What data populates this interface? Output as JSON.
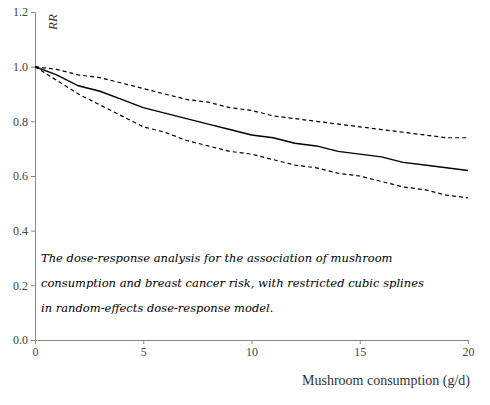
{
  "chart_data": {
    "type": "line",
    "x_label": "Mushroom consumption (g/d)",
    "y_label": "RR",
    "annotations": [
      "The dose-response analysis for the association of mushroom",
      "consumption and breast cancer risk, with restricted cubic splines",
      "in random-effects dose-response model."
    ],
    "x": [
      0,
      1,
      2,
      3,
      4,
      5,
      6,
      7,
      8,
      9,
      10,
      11,
      12,
      13,
      14,
      15,
      16,
      17,
      18,
      19,
      20
    ],
    "series": [
      {
        "color": "#000000",
        "line_style": "solid",
        "values": [
          1.0,
          0.97,
          0.93,
          0.91,
          0.88,
          0.85,
          0.83,
          0.81,
          0.79,
          0.77,
          0.75,
          0.74,
          0.72,
          0.71,
          0.69,
          0.68,
          0.67,
          0.65,
          0.64,
          0.63,
          0.62
        ]
      },
      {
        "color": "#000000",
        "line_style": "dashed",
        "values": [
          1.0,
          0.99,
          0.97,
          0.96,
          0.94,
          0.92,
          0.9,
          0.88,
          0.87,
          0.85,
          0.84,
          0.82,
          0.81,
          0.8,
          0.79,
          0.78,
          0.77,
          0.76,
          0.75,
          0.74,
          0.74
        ]
      },
      {
        "color": "#000000",
        "line_style": "dashed",
        "values": [
          1.0,
          0.95,
          0.9,
          0.86,
          0.82,
          0.78,
          0.76,
          0.73,
          0.71,
          0.69,
          0.68,
          0.66,
          0.64,
          0.63,
          0.61,
          0.6,
          0.58,
          0.56,
          0.55,
          0.53,
          0.52
        ]
      }
    ],
    "xlim": [
      0,
      20
    ],
    "xticks": [
      0,
      5,
      10,
      15,
      20
    ],
    "ylim": [
      0,
      1.2
    ],
    "yticks": [
      {
        "value": 0,
        "label": "0.0"
      },
      {
        "value": 0.2,
        "label": "0.2"
      },
      {
        "value": 0.4,
        "label": "0.4"
      },
      {
        "value": 0.6,
        "label": "0.6"
      },
      {
        "value": 0.8,
        "label": "0.8"
      },
      {
        "value": 1.0,
        "label": "1.0"
      },
      {
        "value": 1.2,
        "label": "1.2"
      }
    ],
    "grid": false
  }
}
